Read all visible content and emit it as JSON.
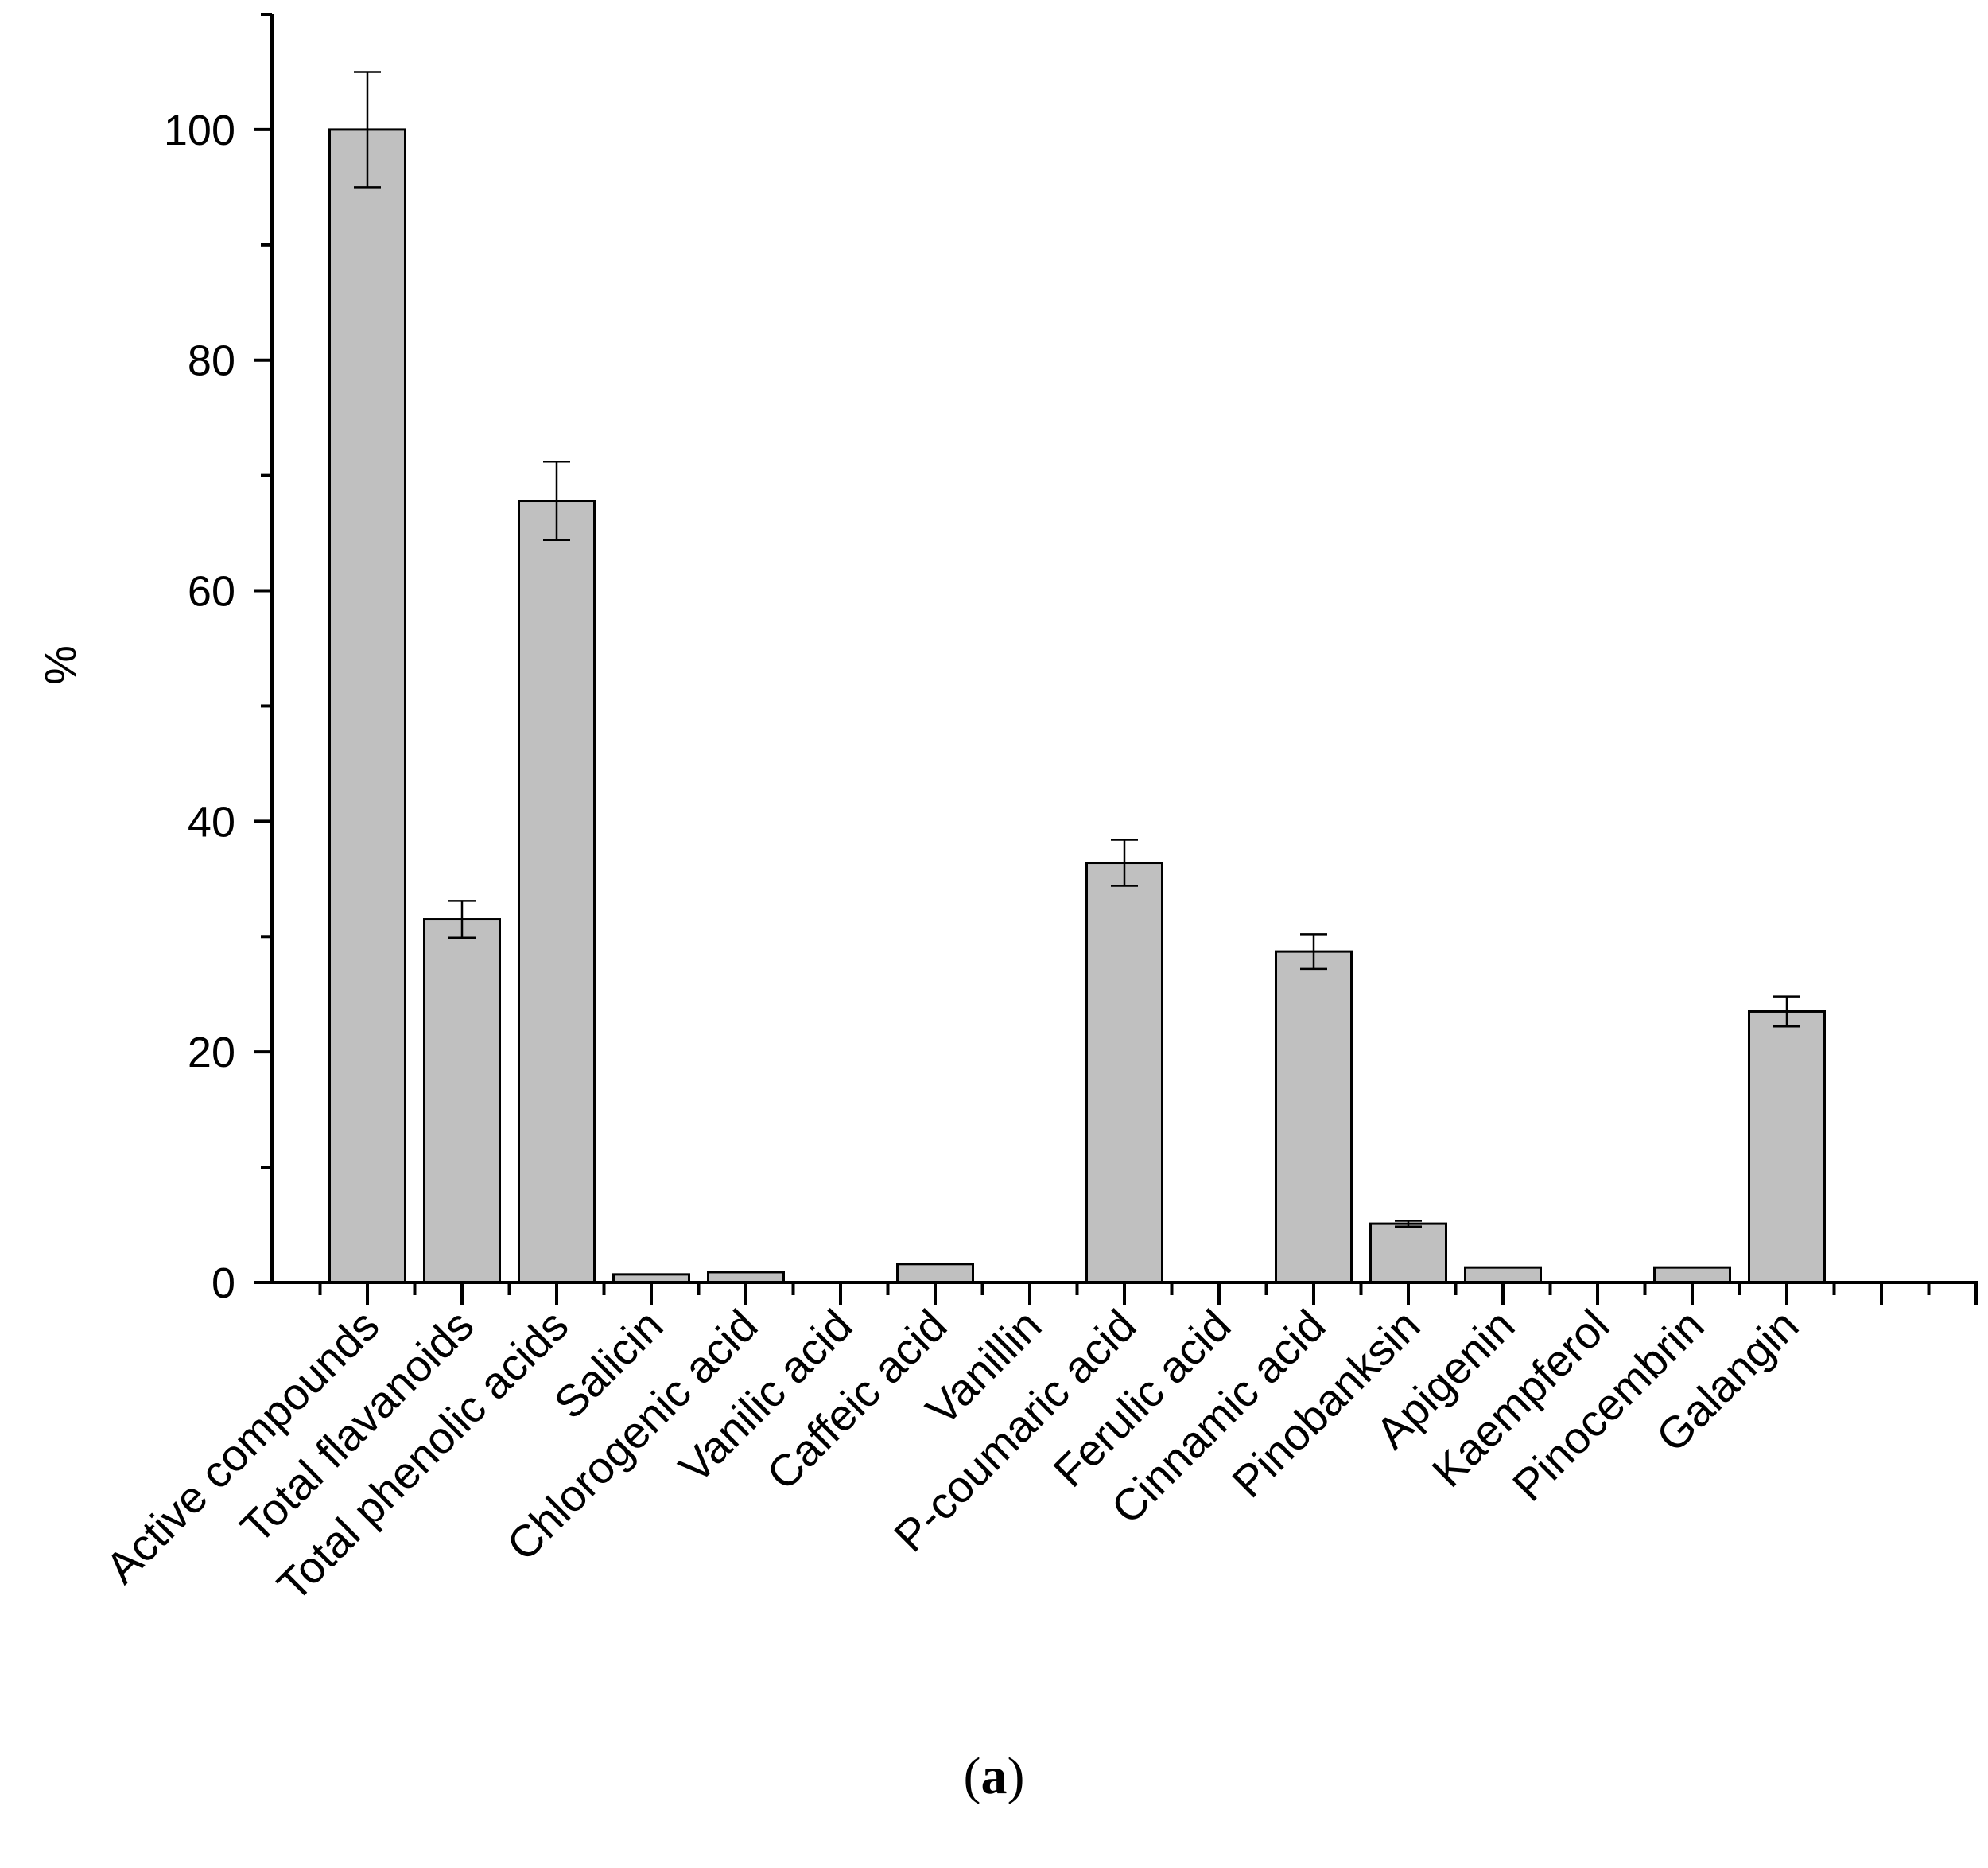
{
  "chart_data": {
    "type": "bar",
    "title": "",
    "xlabel": "",
    "ylabel": "%",
    "ylim": [
      0,
      110
    ],
    "yticks": [
      0,
      20,
      40,
      60,
      80,
      100
    ],
    "yticks_minor": [
      10,
      30,
      50,
      70,
      90,
      110
    ],
    "grid": false,
    "bar_color": "#c0c0c0",
    "categories": [
      "Active compounds",
      "Total flavanoids",
      "Total phenolic acids",
      "Salicin",
      "Chlorogenic acid",
      "Vanilic acid",
      "Caffeic acid",
      "Vanillin",
      "P-coumaric acid",
      "Ferulic acid",
      "Cinnamic acid",
      "Pinobanksin",
      "Apigenin",
      "Kaempferol",
      "Pinocembrin",
      "Galangin"
    ],
    "values": [
      100,
      31.5,
      67.8,
      0.7,
      0.9,
      0,
      1.6,
      0,
      36.4,
      0,
      28.7,
      5.1,
      1.3,
      0,
      1.3,
      23.5
    ],
    "errors": [
      5,
      1.6,
      3.4,
      0,
      0,
      0,
      0,
      0,
      2.0,
      0,
      1.5,
      0.25,
      0,
      0,
      0,
      1.3
    ]
  },
  "caption": {
    "open": "(",
    "letter": "a",
    "close": ")"
  }
}
